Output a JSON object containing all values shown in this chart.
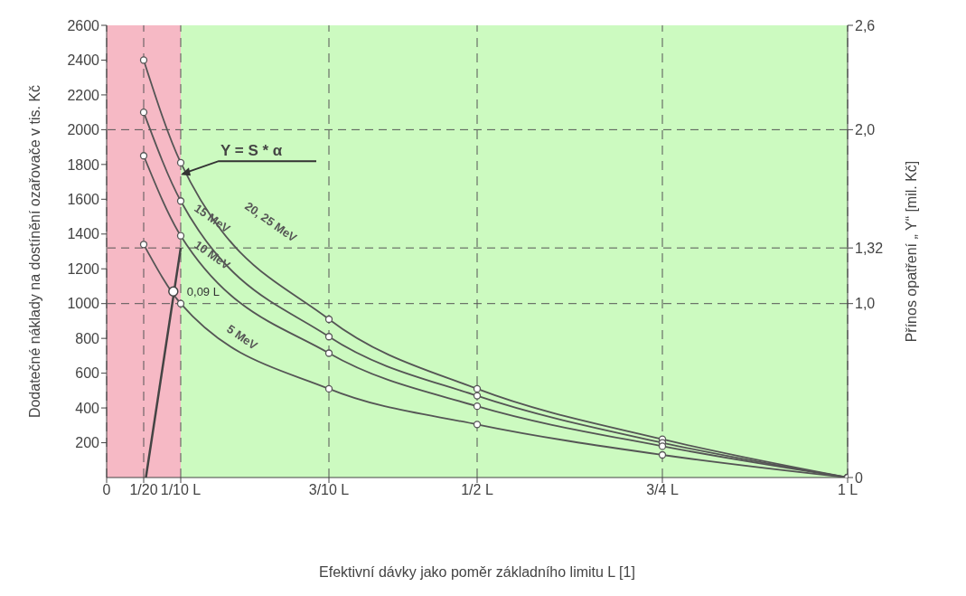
{
  "chart_data": {
    "type": "line",
    "xlabel": "Efektivní dávky jako poměr základního limitu L [1]",
    "ylabel": "Dodatečné náklady na dostínění ozařovače v tis. Kč",
    "y2label": "Přínos opatření „ Y“ [mil. Kč]",
    "x": [
      0.05,
      0.1,
      0.3,
      0.5,
      0.75,
      1
    ],
    "series": [
      {
        "name": "20, 25 MeV",
        "color": "#555555",
        "values": [
          2400,
          1810,
          910,
          510,
          220,
          0
        ]
      },
      {
        "name": "15 MeV",
        "color": "#555555",
        "values": [
          2100,
          1590,
          810,
          470,
          200,
          0
        ]
      },
      {
        "name": "10 MeV",
        "color": "#555555",
        "values": [
          1850,
          1390,
          715,
          410,
          180,
          0
        ]
      },
      {
        "name": "5 MeV",
        "color": "#555555",
        "values": [
          1340,
          1000,
          510,
          305,
          130,
          0
        ]
      },
      {
        "name": "Y = S * α",
        "color": "#444444",
        "axis": "y2",
        "marker": "none",
        "x": [
          0.053,
          0.1
        ],
        "values": [
          0,
          1.32
        ]
      }
    ],
    "xlim": [
      0,
      1
    ],
    "xticks": [
      0,
      {
        "value": 0.05,
        "label": "1/20"
      },
      {
        "value": 0.1,
        "label": "1/10 L"
      },
      {
        "value": 0.3,
        "label": "3/10 L"
      },
      {
        "value": 0.5,
        "label": "1/2 L"
      },
      {
        "value": 0.75,
        "label": "3/4 L"
      },
      {
        "value": 1,
        "label": "1 L"
      }
    ],
    "ylim": [
      0,
      2600
    ],
    "yticks": [
      200,
      400,
      600,
      800,
      1000,
      1200,
      1400,
      1600,
      1800,
      2000,
      2200,
      2400,
      2600
    ],
    "y2lim": [
      0,
      2.6
    ],
    "y2ticks": [
      0,
      {
        "value": 1,
        "label": "1,0"
      },
      {
        "value": 1.32,
        "label": "1,32"
      },
      {
        "value": 2,
        "label": "2,0"
      },
      {
        "value": 2.6,
        "label": "2,6"
      }
    ],
    "bands": [
      {
        "axis": "x",
        "from": 0,
        "to": 0.1,
        "color": "#f6b9c5"
      },
      {
        "axis": "x",
        "from": 0.1,
        "to": 1,
        "color": "#ccfac0"
      }
    ],
    "ref_lines": [
      {
        "axis": "y2",
        "value": 1,
        "line_style": "dashed"
      },
      {
        "axis": "y2",
        "value": 1.32,
        "line_style": "dashed"
      },
      {
        "axis": "y2",
        "value": 2,
        "line_style": "dashed"
      }
    ],
    "annotations": [
      {
        "text": "0,09 L",
        "x": 0.09,
        "y": 1070
      }
    ],
    "grid": "x",
    "marker": "circle",
    "line_style": "solid"
  }
}
